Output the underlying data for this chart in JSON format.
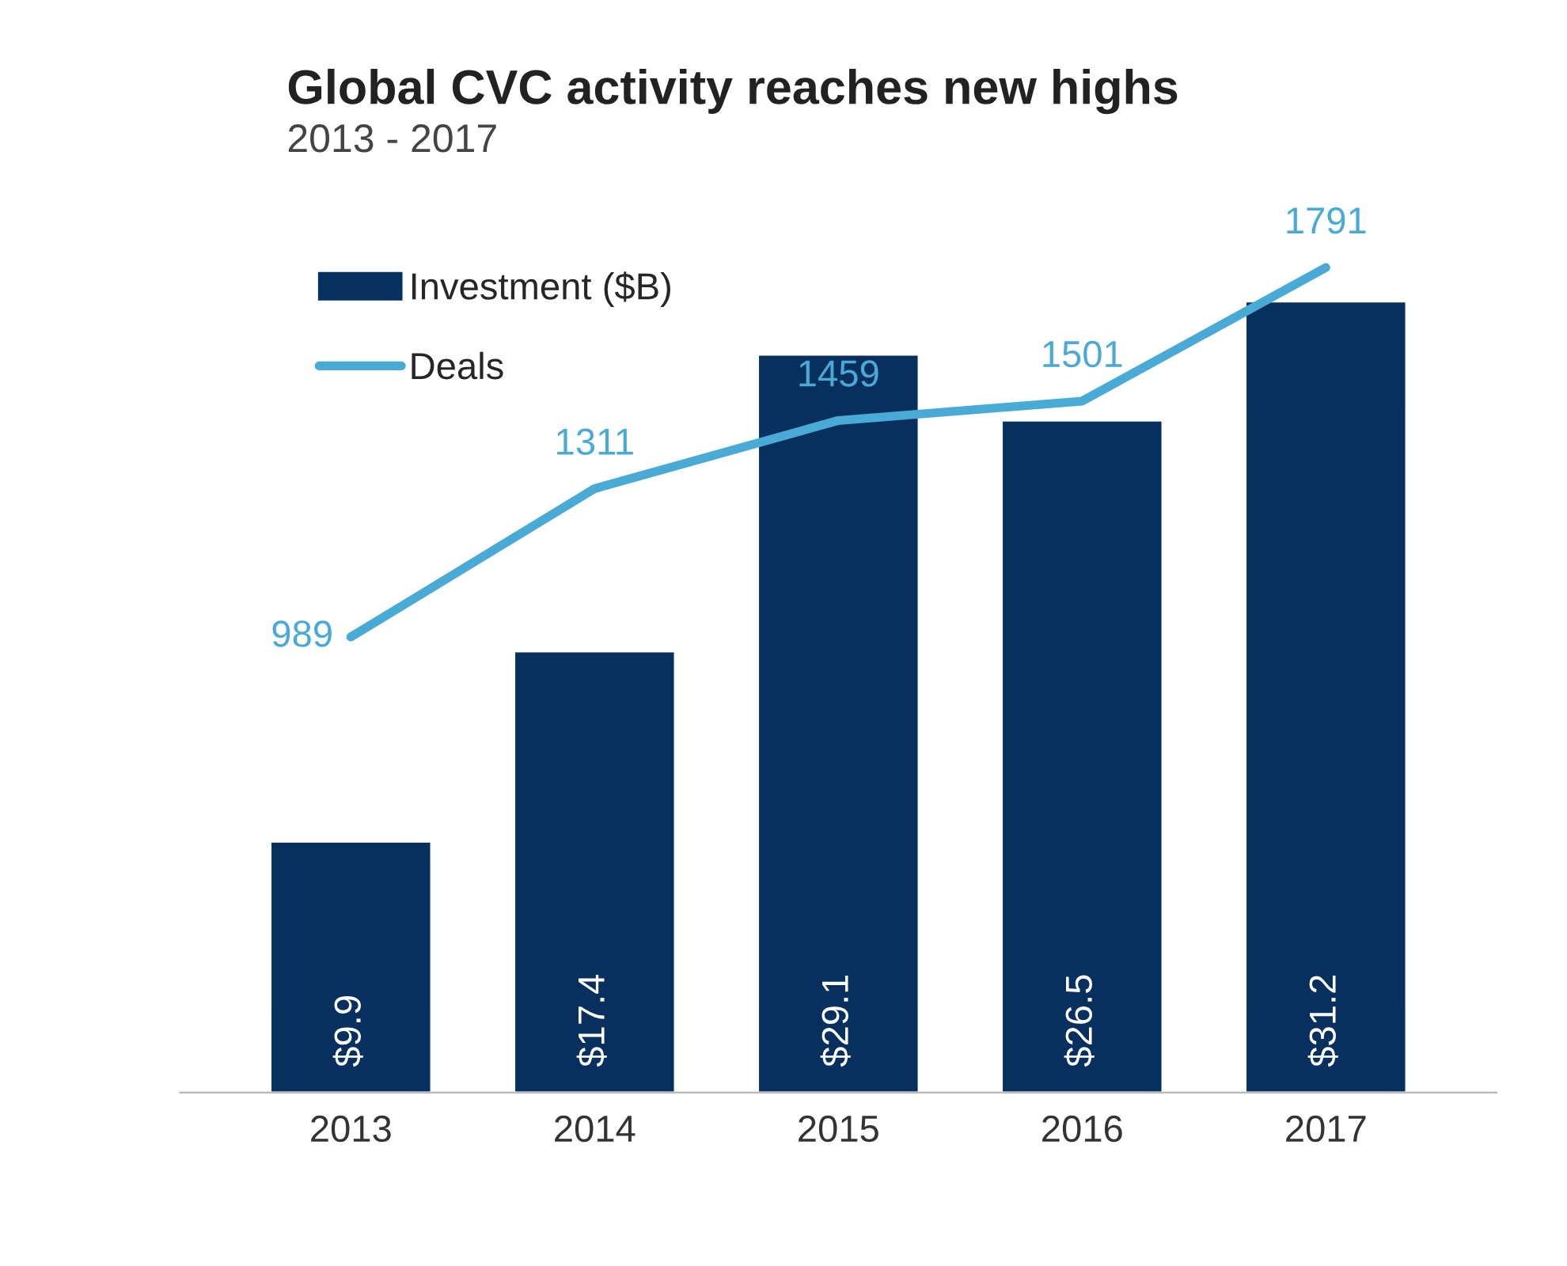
{
  "chart_data": {
    "type": "bar",
    "title": "Global CVC activity reaches new highs",
    "subtitle": "2013 - 2017",
    "categories": [
      "2013",
      "2014",
      "2015",
      "2016",
      "2017"
    ],
    "series": [
      {
        "name": "Investment ($B)",
        "color": "#07305f",
        "values": [
          9.9,
          17.4,
          29.1,
          26.5,
          31.2
        ],
        "value_labels": [
          "$9.9",
          "$17.4",
          "$29.1",
          "$26.5",
          "$31.2"
        ]
      },
      {
        "name": "Deals",
        "type": "line",
        "axis": "y2",
        "color": "#4aaad6",
        "values": [
          989,
          1311,
          1459,
          1501,
          1791
        ],
        "value_labels": [
          "989",
          "1311",
          "1459",
          "1501",
          "1791"
        ]
      }
    ],
    "tick_labels": "x",
    "legend": "top left",
    "grid": false,
    "marker": "none",
    "line_style": "solid"
  }
}
